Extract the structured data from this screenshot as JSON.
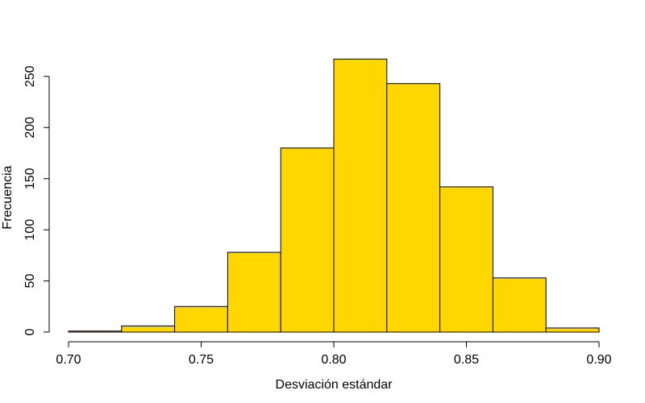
{
  "chart_data": {
    "type": "bar",
    "histogram": true,
    "title": "",
    "xlabel": "Desviación estándar",
    "ylabel": "Frecuencia",
    "bin_edges": [
      0.7,
      0.72,
      0.74,
      0.76,
      0.78,
      0.8,
      0.82,
      0.84,
      0.86,
      0.88,
      0.9
    ],
    "values": [
      1,
      6,
      25,
      78,
      180,
      267,
      243,
      142,
      53,
      4
    ],
    "xlim": [
      0.7,
      0.9
    ],
    "ylim": [
      0,
      268
    ],
    "xticks": [
      0.7,
      0.75,
      0.8,
      0.85,
      0.9
    ],
    "xtick_labels": [
      "0.70",
      "0.75",
      "0.80",
      "0.85",
      "0.90"
    ],
    "yticks": [
      0,
      50,
      100,
      150,
      200,
      250
    ],
    "ytick_labels": [
      "0",
      "50",
      "100",
      "150",
      "200",
      "250"
    ],
    "bar_color": "#FFD700",
    "edge_color": "#000000",
    "grid": false,
    "legend": "none"
  }
}
